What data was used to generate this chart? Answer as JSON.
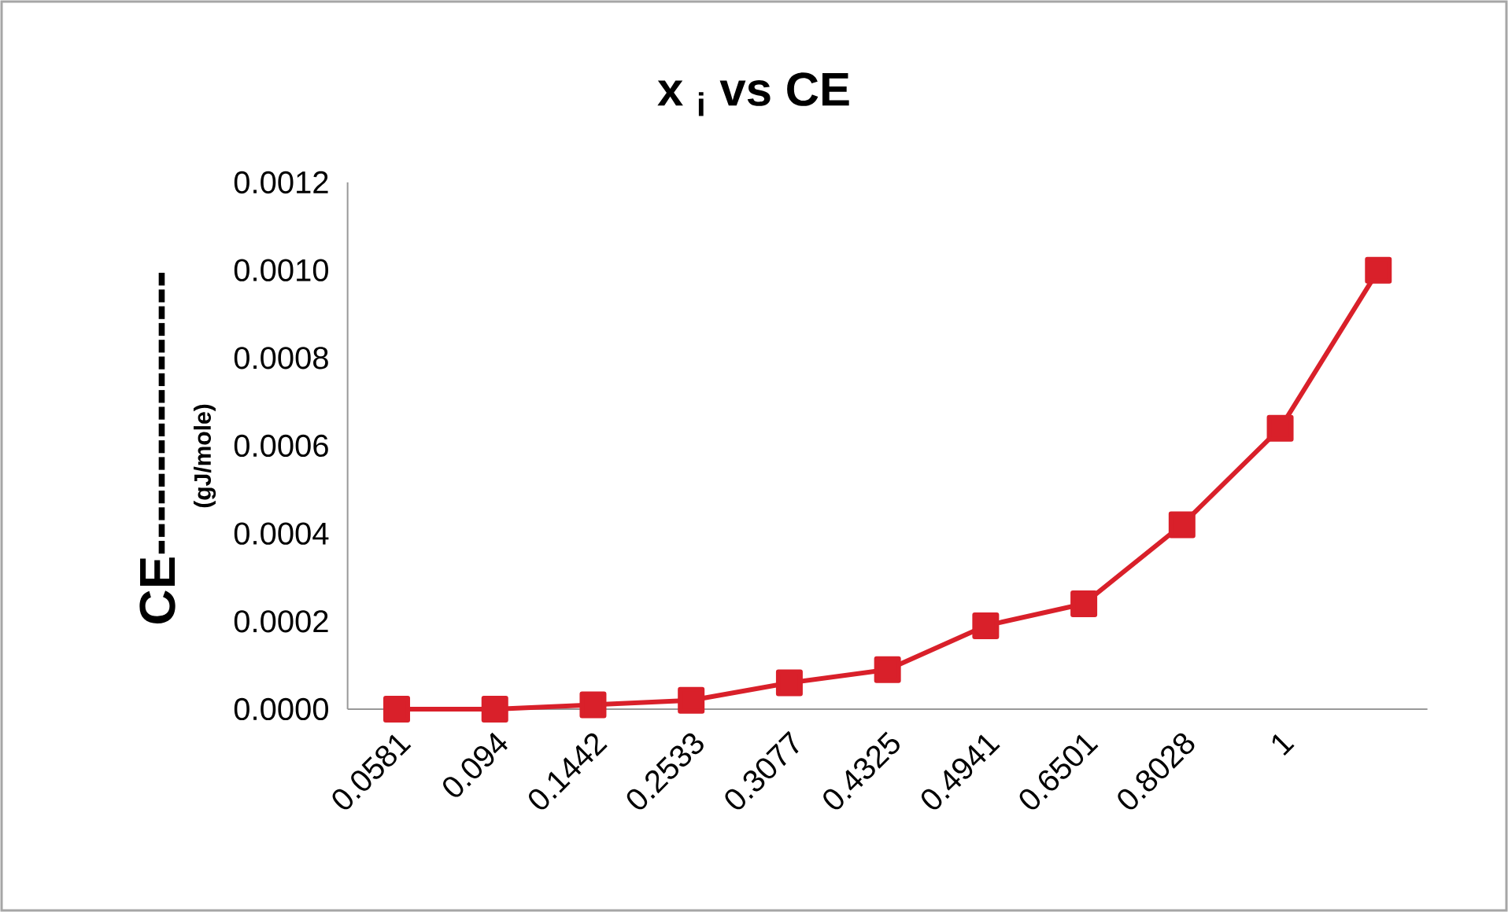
{
  "chart_data": {
    "type": "line",
    "title": "x $_{i}$ vs CE",
    "ylabel": "CE-----------------",
    "annotations": [
      "(gJ/mole)"
    ],
    "categories": [
      "0.0581",
      "0.094",
      "0.1442",
      "0.2533",
      "0.3077",
      "0.4325",
      "0.4941",
      "0.6501",
      "0.8028",
      "1",
      null
    ],
    "series": [
      {
        "color": "#d9202a",
        "values": [
          0.0,
          0.0,
          1e-05,
          2e-05,
          6e-05,
          9e-05,
          0.00019,
          0.00024,
          0.00042,
          0.00064,
          0.001
        ]
      }
    ],
    "ylim": [
      0,
      0.0012
    ],
    "yticks": [
      {
        "value": 0,
        "label": "0.0000"
      },
      {
        "value": 0.0002,
        "label": "0.0002"
      },
      {
        "value": 0.0004,
        "label": "0.0004"
      },
      {
        "value": 0.0006,
        "label": "0.0006"
      },
      {
        "value": 0.0008,
        "label": "0.0008"
      },
      {
        "value": 0.001,
        "label": "0.0010"
      },
      {
        "value": 0.0012,
        "label": "0.0012"
      }
    ],
    "marker": "square",
    "line_style": "solid"
  }
}
